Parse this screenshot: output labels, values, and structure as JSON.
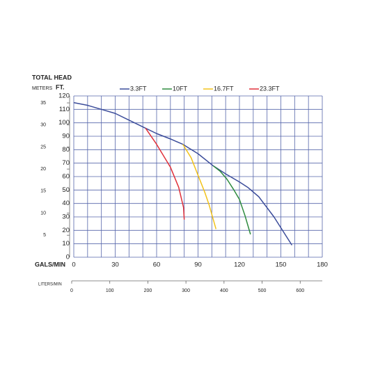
{
  "chart_data": {
    "type": "line",
    "y_label": "TOTAL HEAD",
    "y2_label": "METERS",
    "y_unit": "FT.",
    "x_label": "GALS/MIN",
    "x2_label": "LITERS/MIN",
    "xlim": [
      0,
      180
    ],
    "xticks": [
      0,
      30,
      60,
      90,
      120,
      150,
      180
    ],
    "xgrid": [
      0,
      10,
      20,
      30,
      40,
      50,
      60,
      70,
      80,
      90,
      100,
      110,
      120,
      130,
      140,
      150,
      160,
      170,
      180
    ],
    "ylim": [
      0,
      120
    ],
    "yticks": [
      0,
      10,
      20,
      30,
      40,
      50,
      60,
      70,
      80,
      90,
      100,
      110,
      120
    ],
    "y2lim": [
      0,
      36.58
    ],
    "y2ticks": [
      5,
      10,
      15,
      20,
      25,
      30,
      35
    ],
    "x2lim": [
      0,
      658
    ],
    "x2ticks": [
      0,
      100,
      200,
      300,
      400,
      500,
      600
    ],
    "grid": true,
    "grid_color": "#5565aa",
    "series": [
      {
        "name": "3.3FT",
        "color": "#3b4c9a",
        "x": [
          0,
          10,
          20,
          30,
          40,
          52,
          60,
          70,
          79,
          90,
          101,
          110,
          120,
          126,
          134,
          145,
          158
        ],
        "values": [
          115,
          113,
          110,
          107,
          102,
          96,
          92,
          88,
          84,
          77,
          68,
          62,
          56,
          52,
          45,
          30,
          9
        ]
      },
      {
        "name": "10FT",
        "color": "#2e8b3e",
        "x": [
          101,
          106,
          111,
          116,
          120,
          124,
          128
        ],
        "values": [
          68,
          64,
          58,
          50,
          43,
          31,
          17
        ]
      },
      {
        "name": "16.7FT",
        "color": "#f2c21b",
        "x": [
          79,
          85,
          90,
          95,
          98,
          103
        ],
        "values": [
          84,
          74,
          61,
          48,
          39,
          21
        ]
      },
      {
        "name": "23.3FT",
        "color": "#e0303a",
        "x": [
          52,
          60,
          70,
          76,
          79.5,
          80
        ],
        "values": [
          96,
          84,
          67,
          52,
          37,
          28
        ]
      }
    ]
  }
}
